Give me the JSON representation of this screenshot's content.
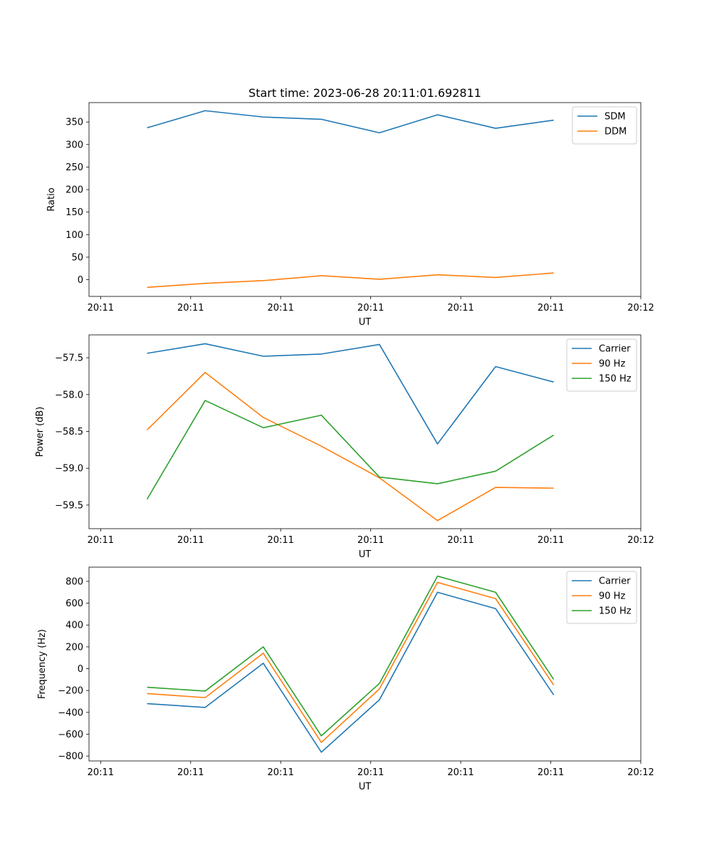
{
  "chart_data": [
    {
      "type": "line",
      "title": "Start time: 2023-06-28 20:11:01.692811",
      "xlabel": "UT",
      "ylabel": "Ratio",
      "x": [
        1,
        2,
        3,
        4,
        5,
        6,
        7,
        8
      ],
      "xlim": [
        0,
        9.5
      ],
      "xticks": [
        0.2,
        1.75,
        3.3,
        4.85,
        6.4,
        7.95,
        9.5
      ],
      "xtick_labels": [
        "20:11",
        "20:11",
        "20:11",
        "20:11",
        "20:11",
        "20:11",
        "20:12"
      ],
      "ylim": [
        -37,
        393
      ],
      "yticks": [
        0,
        50,
        100,
        150,
        200,
        250,
        300,
        350
      ],
      "grid": false,
      "legend_position": "top-right",
      "series": [
        {
          "name": "SDM",
          "color": "#1f77b4",
          "values": [
            337,
            375,
            361,
            356,
            326,
            366,
            336,
            354
          ]
        },
        {
          "name": "DDM",
          "color": "#ff7f0e",
          "values": [
            -17,
            -8,
            -2,
            9,
            1,
            11,
            5,
            15
          ]
        }
      ]
    },
    {
      "type": "line",
      "title": "",
      "xlabel": "UT",
      "ylabel": "Power (dB)",
      "x": [
        1,
        2,
        3,
        4,
        5,
        6,
        7,
        8
      ],
      "xlim": [
        0,
        9.5
      ],
      "xticks": [
        0.2,
        1.75,
        3.3,
        4.85,
        6.4,
        7.95,
        9.5
      ],
      "xtick_labels": [
        "20:11",
        "20:11",
        "20:11",
        "20:11",
        "20:11",
        "20:11",
        "20:12"
      ],
      "ylim": [
        -59.82,
        -57.19
      ],
      "yticks": [
        -59.5,
        -59.0,
        -58.5,
        -58.0,
        -57.5
      ],
      "ytick_labels": [
        "−59.5",
        "−59.0",
        "−58.5",
        "−58.0",
        "−57.5"
      ],
      "grid": false,
      "legend_position": "top-right",
      "series": [
        {
          "name": "Carrier",
          "color": "#1f77b4",
          "values": [
            -57.44,
            -57.31,
            -57.48,
            -57.45,
            -57.32,
            -58.67,
            -57.62,
            -57.83
          ]
        },
        {
          "name": "90 Hz",
          "color": "#ff7f0e",
          "values": [
            -58.48,
            -57.7,
            -58.31,
            -58.7,
            -59.13,
            -59.71,
            -59.26,
            -59.27
          ]
        },
        {
          "name": "150 Hz",
          "color": "#2ca02c",
          "values": [
            -59.42,
            -58.08,
            -58.45,
            -58.28,
            -59.12,
            -59.21,
            -59.04,
            -58.55
          ]
        }
      ]
    },
    {
      "type": "line",
      "title": "",
      "xlabel": "UT",
      "ylabel": "Frequency (Hz)",
      "x": [
        1,
        2,
        3,
        4,
        5,
        6,
        7,
        8
      ],
      "xlim": [
        0,
        9.5
      ],
      "xticks": [
        0.2,
        1.75,
        3.3,
        4.85,
        6.4,
        7.95,
        9.5
      ],
      "xtick_labels": [
        "20:11",
        "20:11",
        "20:11",
        "20:11",
        "20:11",
        "20:11",
        "20:12"
      ],
      "ylim": [
        -845,
        930
      ],
      "yticks": [
        -800,
        -600,
        -400,
        -200,
        0,
        200,
        400,
        600,
        800
      ],
      "ytick_labels": [
        "−800",
        "−600",
        "−400",
        "−200",
        "0",
        "200",
        "400",
        "600",
        "800"
      ],
      "grid": false,
      "legend_position": "top-right",
      "series": [
        {
          "name": "Carrier",
          "color": "#1f77b4",
          "values": [
            -320,
            -355,
            50,
            -765,
            -285,
            700,
            550,
            -240
          ]
        },
        {
          "name": "90 Hz",
          "color": "#ff7f0e",
          "values": [
            -228,
            -265,
            142,
            -675,
            -185,
            790,
            642,
            -150
          ]
        },
        {
          "name": "150 Hz",
          "color": "#2ca02c",
          "values": [
            -170,
            -205,
            200,
            -615,
            -135,
            848,
            700,
            -98
          ]
        }
      ]
    }
  ]
}
